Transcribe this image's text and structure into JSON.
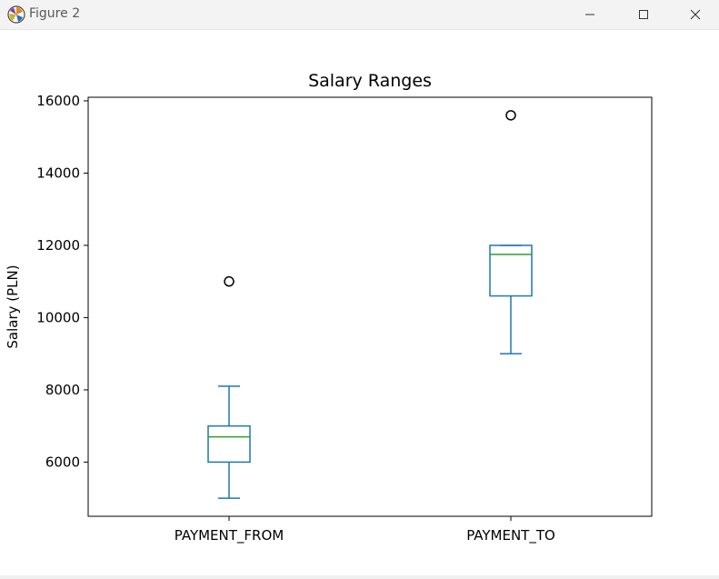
{
  "window": {
    "title": "Figure 2",
    "app_icon": "matplotlib-logo-icon",
    "controls": {
      "minimize": "minimize-icon",
      "maximize": "maximize-icon",
      "close": "close-icon"
    }
  },
  "chart_data": {
    "type": "box",
    "title": "Salary Ranges",
    "xlabel": "",
    "ylabel": "Salary (PLN)",
    "categories": [
      "PAYMENT_FROM",
      "PAYMENT_TO"
    ],
    "ylim": [
      4500,
      16100
    ],
    "yticks": [
      6000,
      8000,
      10000,
      12000,
      14000,
      16000
    ],
    "grid": false,
    "series": [
      {
        "category": "PAYMENT_FROM",
        "whisker_low": 5000,
        "q1": 6000,
        "median": 6700,
        "q3": 7000,
        "whisker_high": 8100,
        "outliers": [
          11000
        ]
      },
      {
        "category": "PAYMENT_TO",
        "whisker_low": 9000,
        "q1": 10600,
        "median": 11750,
        "q3": 12000,
        "whisker_high": 12000,
        "outliers": [
          15600
        ]
      }
    ],
    "colors": {
      "box": "#1f77b4",
      "median": "#2ca02c",
      "outlier": "#000000",
      "axes": "#000000"
    }
  }
}
